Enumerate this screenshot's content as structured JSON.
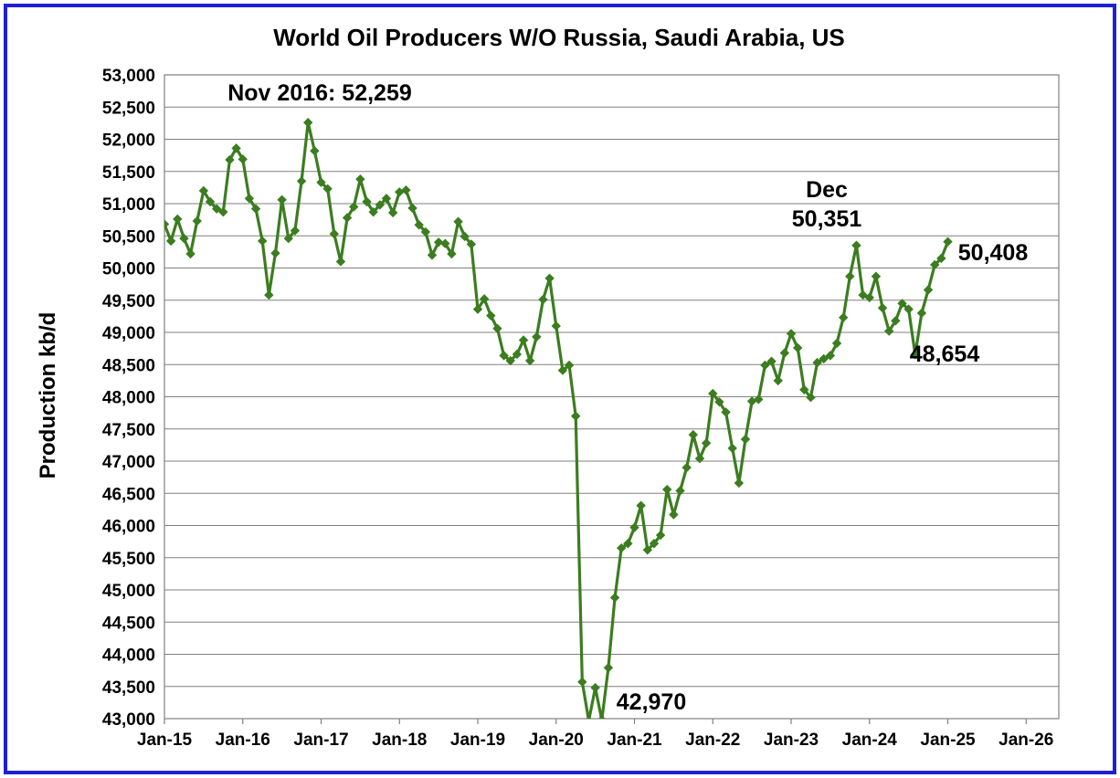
{
  "chart_data": {
    "type": "line",
    "title": "World Oil Producers W/O Russia, Saudi Arabia, US",
    "ylabel": "Production kb/d",
    "xlabel": "",
    "ylim": [
      43000,
      53000
    ],
    "ytick_step": 500,
    "xlim": [
      "2015-01",
      "2026-06"
    ],
    "xtick_labels": [
      "Jan-15",
      "Jan-16",
      "Jan-17",
      "Jan-18",
      "Jan-19",
      "Jan-20",
      "Jan-21",
      "Jan-22",
      "Jan-23",
      "Jan-24",
      "Jan-25",
      "Jan-26"
    ],
    "grid": true,
    "legend": "none",
    "series_color": "#3b7d1f",
    "start_month": "2015-01",
    "series": [
      {
        "values": [
          50680,
          50420,
          50760,
          50460,
          50220,
          50730,
          51200,
          51030,
          50920,
          50870,
          51680,
          51860,
          51690,
          51080,
          50920,
          50420,
          49580,
          50230,
          51060,
          50460,
          50580,
          51350,
          52259,
          51820,
          51330,
          51230,
          50530,
          50100,
          50780,
          50950,
          51380,
          51030,
          50870,
          50980,
          51080,
          50860,
          51180,
          51210,
          50930,
          50670,
          50560,
          50200,
          50400,
          50380,
          50220,
          50720,
          50490,
          50370,
          49360,
          49520,
          49260,
          49060,
          48640,
          48560,
          48660,
          48880,
          48560,
          48930,
          49510,
          49840,
          49100,
          48410,
          48490,
          47700,
          43570,
          42970,
          43480,
          42980,
          43790,
          44880,
          45650,
          45720,
          45970,
          46310,
          45620,
          45720,
          45850,
          46560,
          46170,
          46540,
          46900,
          47410,
          47040,
          47280,
          48050,
          47920,
          47760,
          47200,
          46660,
          47340,
          47930,
          47960,
          48490,
          48550,
          48250,
          48680,
          48980,
          48760,
          48110,
          47990,
          48530,
          48590,
          48640,
          48830,
          49230,
          49870,
          50351,
          49580,
          49540,
          49870,
          49380,
          49020,
          49180,
          49450,
          49360,
          48654,
          49300,
          49660,
          50050,
          50150,
          50408
        ]
      }
    ],
    "annotations": [
      {
        "text": "Nov 2016: 52,259"
      },
      {
        "text": "Dec"
      },
      {
        "text": "50,351"
      },
      {
        "text": "50,408"
      },
      {
        "text": "48,654"
      },
      {
        "text": "42,970"
      }
    ]
  }
}
